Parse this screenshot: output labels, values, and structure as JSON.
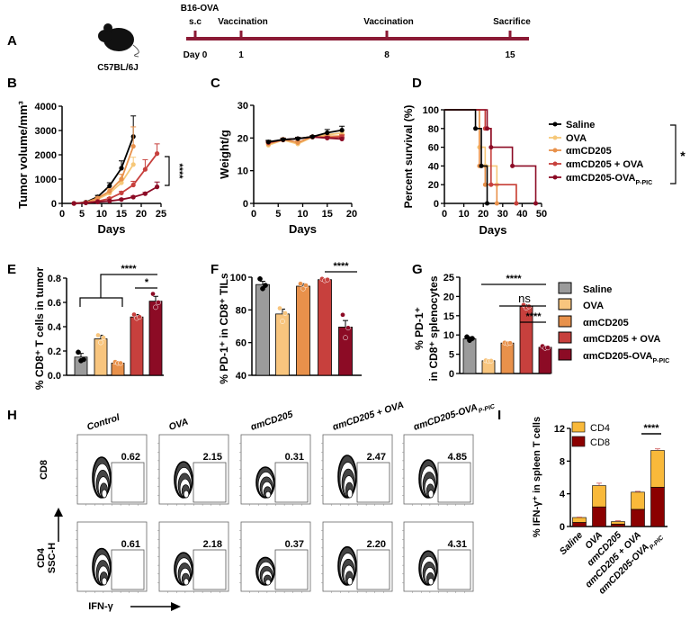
{
  "panel_labels": {
    "A": "A",
    "B": "B",
    "C": "C",
    "D": "D",
    "E": "E",
    "F": "F",
    "G": "G",
    "H": "H",
    "I": "I"
  },
  "timeline": {
    "strain": "C57BL/6J",
    "line_color": "#8b1a35",
    "events": [
      {
        "top": "s.c",
        "top2": "B16-OVA",
        "day": "Day 0"
      },
      {
        "top": "Vaccination",
        "day": "1"
      },
      {
        "top": "Vaccination",
        "day": "8"
      },
      {
        "top": "Sacrifice",
        "day": "15"
      }
    ]
  },
  "groups": [
    {
      "name": "Saline",
      "sub": "",
      "line_color": "#000000",
      "bar_color": "#9b9b9b"
    },
    {
      "name": "OVA",
      "sub": "",
      "line_color": "#f6c879",
      "bar_color": "#f8c57e"
    },
    {
      "name": "αmCD205",
      "sub": "",
      "line_color": "#e8914b",
      "bar_color": "#e8914b"
    },
    {
      "name": "αmCD205 + OVA",
      "sub": "",
      "line_color": "#c7403d",
      "bar_color": "#c7403d"
    },
    {
      "name": "αmCD205-OVA",
      "sub": "P-PIC",
      "line_color": "#8c0b25",
      "bar_color": "#8c0b25"
    }
  ],
  "chart_data": [
    {
      "panel": "B",
      "type": "line",
      "xlabel": "Days",
      "ylabel": "Tumor volume/mm³",
      "xlim": [
        0,
        25
      ],
      "ylim": [
        0,
        4000
      ],
      "xticks": [
        "0",
        "5",
        "10",
        "15",
        "20",
        "25"
      ],
      "yticks": [
        "0",
        "1000",
        "2000",
        "3000",
        "4000"
      ],
      "annotation": "****",
      "series": [
        {
          "group": 0,
          "x": [
            3,
            6,
            9,
            12,
            15,
            18
          ],
          "y": [
            0,
            50,
            270,
            720,
            1450,
            2750
          ],
          "err": [
            0,
            20,
            60,
            130,
            300,
            850
          ]
        },
        {
          "group": 1,
          "x": [
            3,
            6,
            9,
            12,
            15,
            18
          ],
          "y": [
            0,
            30,
            170,
            420,
            850,
            1600
          ],
          "err": [
            0,
            10,
            40,
            80,
            150,
            300
          ]
        },
        {
          "group": 2,
          "x": [
            3,
            6,
            9,
            12,
            15,
            18
          ],
          "y": [
            0,
            40,
            220,
            500,
            1000,
            2350
          ],
          "err": [
            0,
            15,
            50,
            100,
            200,
            800
          ]
        },
        {
          "group": 3,
          "x": [
            3,
            6,
            9,
            12,
            15,
            18,
            21,
            24
          ],
          "y": [
            0,
            30,
            90,
            200,
            430,
            760,
            1400,
            2050
          ],
          "err": [
            0,
            10,
            20,
            40,
            60,
            150,
            400,
            400
          ]
        },
        {
          "group": 4,
          "x": [
            3,
            6,
            9,
            12,
            15,
            18,
            21,
            24
          ],
          "y": [
            0,
            20,
            60,
            100,
            160,
            260,
            400,
            680
          ],
          "err": [
            0,
            5,
            10,
            20,
            30,
            40,
            50,
            200
          ]
        }
      ]
    },
    {
      "panel": "C",
      "type": "line",
      "xlabel": "Days",
      "ylabel": "Weight/g",
      "xlim": [
        0,
        20
      ],
      "ylim": [
        0,
        30
      ],
      "xticks": [
        "0",
        "5",
        "10",
        "15",
        "20"
      ],
      "yticks": [
        "0",
        "10",
        "20",
        "30"
      ],
      "series": [
        {
          "group": 1,
          "x": [
            3,
            6,
            9,
            12,
            15,
            18
          ],
          "y": [
            17.8,
            19.4,
            18.2,
            20.3,
            21.0,
            21.5
          ],
          "err": [
            0.4,
            0.4,
            0.5,
            0.3,
            0.6,
            0.6
          ]
        },
        {
          "group": 2,
          "x": [
            3,
            6,
            9,
            12,
            15,
            18
          ],
          "y": [
            18.2,
            19.6,
            18.6,
            20.4,
            20.5,
            20.6
          ],
          "err": [
            0.4,
            0.4,
            0.5,
            0.3,
            0.5,
            0.5
          ]
        },
        {
          "group": 3,
          "x": [
            3,
            6,
            9,
            12,
            15,
            18
          ],
          "y": [
            18.6,
            19.4,
            19.8,
            20.4,
            20.0,
            20.4
          ],
          "err": [
            0.4,
            0.4,
            0.4,
            0.3,
            0.4,
            0.5
          ]
        },
        {
          "group": 4,
          "x": [
            3,
            6,
            9,
            12,
            15,
            18
          ],
          "y": [
            18.7,
            19.5,
            19.8,
            20.3,
            20.0,
            19.7
          ],
          "err": [
            0.4,
            0.4,
            0.4,
            0.3,
            0.4,
            0.4
          ]
        },
        {
          "group": 0,
          "x": [
            3,
            6,
            9,
            12,
            15,
            18
          ],
          "y": [
            18.8,
            19.5,
            19.8,
            20.4,
            21.6,
            22.4
          ],
          "err": [
            0.5,
            0.4,
            0.4,
            0.3,
            1.0,
            1.2
          ]
        }
      ]
    },
    {
      "panel": "D",
      "type": "line",
      "subtype": "survival-step",
      "xlabel": "Days",
      "ylabel": "Percent survival (%)",
      "xlim": [
        0,
        50
      ],
      "ylim": [
        0,
        100
      ],
      "xticks": [
        "0",
        "10",
        "20",
        "30",
        "40",
        "50"
      ],
      "yticks": [
        "0",
        "20",
        "40",
        "60",
        "80",
        "100"
      ],
      "annotation": "*",
      "legend": "right",
      "series": [
        {
          "group": 1,
          "steps": [
            [
              18,
              60
            ],
            [
              21,
              40
            ],
            [
              27,
              20
            ],
            [
              37,
              0
            ]
          ]
        },
        {
          "group": 2,
          "steps": [
            [
              18,
              40
            ],
            [
              21,
              20
            ],
            [
              27,
              0
            ]
          ]
        },
        {
          "group": 3,
          "steps": [
            [
              21,
              80
            ],
            [
              24,
              20
            ],
            [
              37,
              0
            ]
          ]
        },
        {
          "group": 4,
          "steps": [
            [
              22,
              80
            ],
            [
              24,
              60
            ],
            [
              35,
              40
            ],
            [
              47,
              0
            ]
          ]
        },
        {
          "group": 0,
          "steps": [
            [
              16,
              80
            ],
            [
              19,
              40
            ],
            [
              22,
              0
            ]
          ]
        }
      ]
    },
    {
      "panel": "E",
      "type": "bar",
      "ylabel": "% CD8⁺ T cells in tumor",
      "ylim": [
        0,
        0.8
      ],
      "yticks": [
        "0.0",
        "0.2",
        "0.4",
        "0.6",
        "0.8"
      ],
      "values": [
        0.15,
        0.3,
        0.1,
        0.48,
        0.61
      ],
      "err": [
        0.03,
        0.03,
        0.006,
        0.02,
        0.04
      ],
      "points": [
        [
          0.19,
          0.12,
          0.13
        ],
        [
          0.33,
          0.27,
          0.31
        ],
        [
          0.11,
          0.1,
          0.1
        ],
        [
          0.5,
          0.47,
          0.48
        ],
        [
          0.67,
          0.56,
          0.6
        ]
      ],
      "significance": [
        "****",
        "*"
      ]
    },
    {
      "panel": "F",
      "type": "bar",
      "ylabel": "% PD-1⁺ in CD8⁺ TILs",
      "ylim": [
        40,
        100
      ],
      "yticks": [
        "40",
        "60",
        "80",
        "100"
      ],
      "values": [
        95.5,
        77.5,
        94.5,
        98.5,
        69.5
      ],
      "err": [
        2,
        3,
        1.5,
        0.7,
        4
      ],
      "points": [
        [
          99,
          93,
          95
        ],
        [
          81,
          73,
          78
        ],
        [
          96,
          93,
          95
        ],
        [
          99,
          98,
          98.5
        ],
        [
          77,
          63,
          69
        ]
      ],
      "significance": [
        "****"
      ]
    },
    {
      "panel": "G",
      "type": "bar",
      "ylabel": "% PD-1⁺",
      "ylabel2": "in CD8⁺ splenocytes",
      "ylim": [
        0,
        25
      ],
      "yticks": [
        "0",
        "5",
        "10",
        "15",
        "20",
        "25"
      ],
      "values": [
        9.0,
        3.3,
        7.9,
        17.4,
        6.8
      ],
      "err": [
        0.5,
        0.2,
        0.2,
        0.4,
        0.3
      ],
      "points": [
        [
          9.5,
          8.6,
          9.1
        ],
        [
          3.4,
          3.2,
          3.3
        ],
        [
          8.0,
          7.8,
          7.9
        ],
        [
          17.8,
          17.0,
          17.4
        ],
        [
          7.1,
          6.6,
          6.7
        ]
      ],
      "significance": [
        "****",
        "ns",
        "****"
      ],
      "legend": "right"
    },
    {
      "panel": "H",
      "type": "flow-cytometry",
      "columns": [
        {
          "name": "Control",
          "sub": ""
        },
        {
          "name": "OVA",
          "sub": ""
        },
        {
          "name": "αmCD205",
          "sub": ""
        },
        {
          "name": "αmCD205 + OVA",
          "sub": ""
        },
        {
          "name": "αmCD205-OVA",
          "sub": "P-PIC"
        }
      ],
      "rows": [
        {
          "label": "CD8",
          "values": [
            "0.62",
            "2.15",
            "0.31",
            "2.47",
            "4.85"
          ]
        },
        {
          "label": "CD4",
          "values": [
            "0.61",
            "2.18",
            "0.37",
            "2.20",
            "4.31"
          ]
        }
      ],
      "ylabel": "SSC-H",
      "xlabel": "IFN-γ"
    },
    {
      "panel": "I",
      "type": "bar",
      "subtype": "stacked",
      "ylabel": "% IFN-γ⁺ in spleen T cells",
      "ylim": [
        0,
        12
      ],
      "yticks": [
        "0",
        "4",
        "8",
        "12"
      ],
      "categories": [
        {
          "name": "Saline",
          "sub": ""
        },
        {
          "name": "OVA",
          "sub": ""
        },
        {
          "name": "αmCD205",
          "sub": ""
        },
        {
          "name": "αmCD205 + OVA",
          "sub": ""
        },
        {
          "name": "αmCD205-OVA",
          "sub": "P-PIC"
        }
      ],
      "series": [
        {
          "name": "CD8",
          "color": "#8b0000",
          "values": [
            0.5,
            2.4,
            0.3,
            2.1,
            4.8
          ],
          "err": [
            0.05,
            0.3,
            0.05,
            0.2,
            0.6
          ]
        },
        {
          "name": "CD4",
          "color": "#f9b93a",
          "values": [
            0.6,
            2.6,
            0.3,
            2.1,
            4.5
          ],
          "err": [
            0.05,
            0.3,
            0.1,
            0.1,
            0.2
          ]
        }
      ],
      "significance": [
        "****"
      ],
      "legend": "top-left"
    }
  ]
}
